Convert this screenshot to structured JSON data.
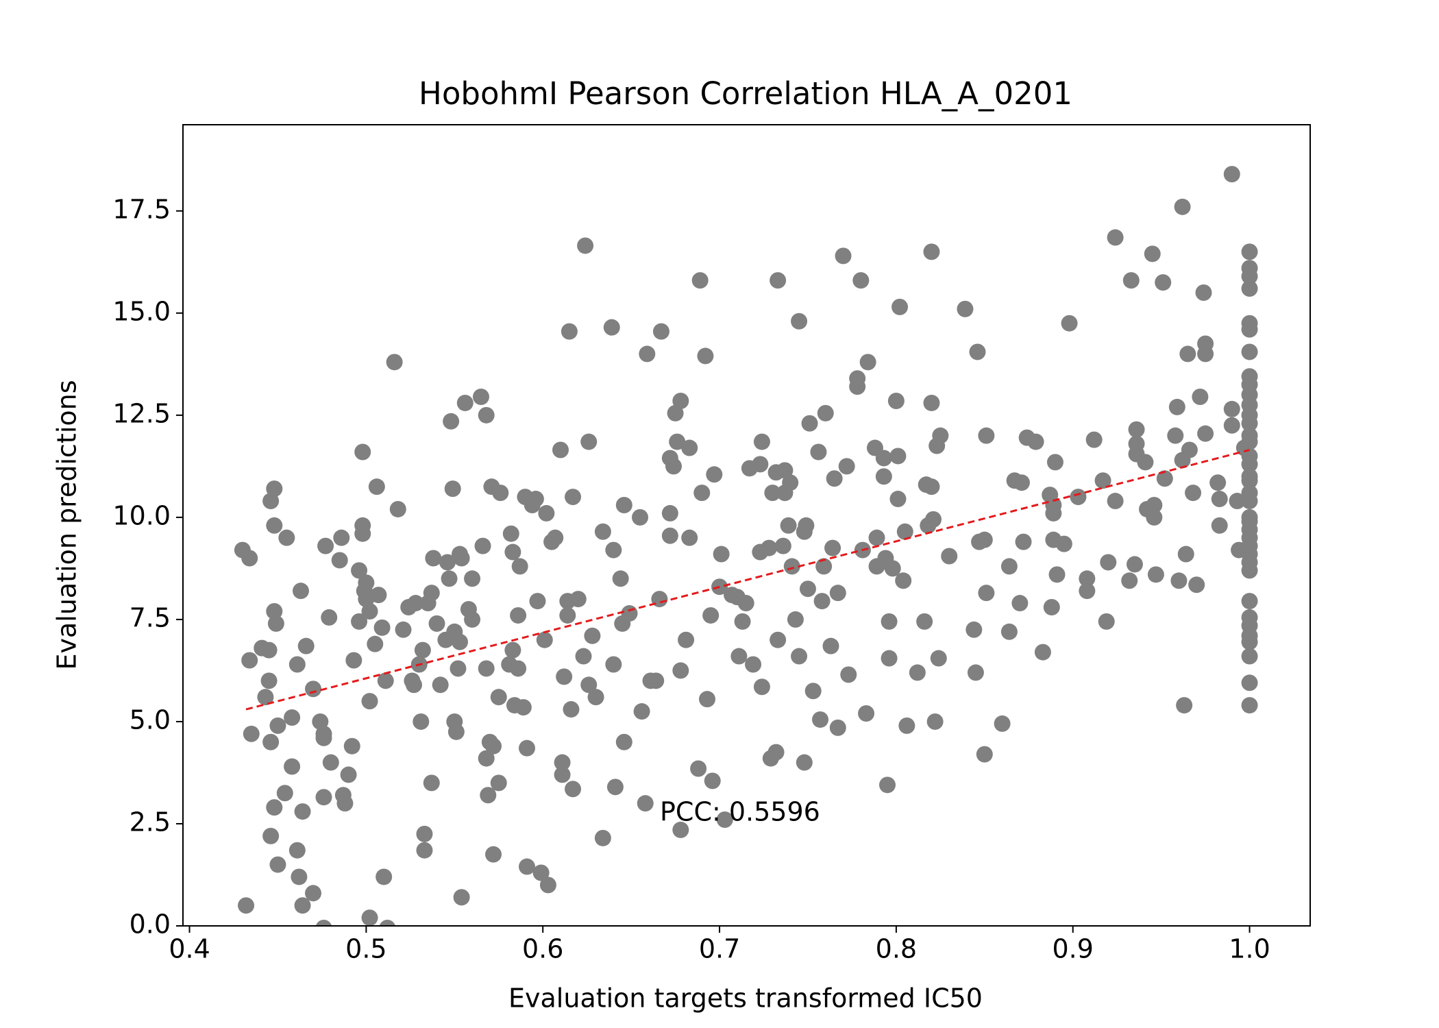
{
  "chart_data": {
    "type": "scatter",
    "title": "HobohmI Pearson Correlation HLA_A_0201",
    "xlabel": "Evaluation targets transformed IC50",
    "ylabel": "Evaluation predictions",
    "annotation": "PCC: 0.5596",
    "color": "#808080",
    "xlim": [
      0.3963,
      1.0343
    ],
    "ylim": [
      0,
      19.61
    ],
    "xticks": [
      0.4,
      0.5,
      0.6,
      0.7,
      0.8,
      0.9,
      {
        "value": 1,
        "label": "1.0"
      }
    ],
    "yticks": [
      {
        "value": 0,
        "label": "0.0"
      },
      2.5,
      {
        "value": 5,
        "label": "5.0"
      },
      7.5,
      {
        "value": 10,
        "label": "10.0"
      },
      12.5,
      {
        "value": 15,
        "label": "15.0"
      },
      17.5
    ],
    "trendline": {
      "color": "#e41a1c",
      "x": [
        0.432,
        1.0
      ],
      "values": [
        5.3,
        11.65
      ]
    },
    "x": [
      0.43,
      0.434,
      0.434,
      0.435,
      0.432,
      0.441,
      0.443,
      0.445,
      0.445,
      0.446,
      0.448,
      0.448,
      0.448,
      0.449,
      0.45,
      0.446,
      0.448,
      0.446,
      0.45,
      0.454,
      0.455,
      0.458,
      0.458,
      0.461,
      0.461,
      0.462,
      0.463,
      0.464,
      0.464,
      0.466,
      0.47,
      0.47,
      0.474,
      0.476,
      0.476,
      0.476,
      0.477,
      0.479,
      0.48,
      0.485,
      0.486,
      0.487,
      0.488,
      0.49,
      0.492,
      0.493,
      0.496,
      0.496,
      0.498,
      0.498,
      0.498,
      0.499,
      0.5,
      0.5,
      0.502,
      0.502,
      0.502,
      0.505,
      0.506,
      0.507,
      0.509,
      0.51,
      0.511,
      0.516,
      0.518,
      0.521,
      0.524,
      0.526,
      0.527,
      0.528,
      0.53,
      0.531,
      0.532,
      0.533,
      0.533,
      0.535,
      0.537,
      0.537,
      0.538,
      0.54,
      0.542,
      0.545,
      0.546,
      0.547,
      0.548,
      0.549,
      0.55,
      0.55,
      0.551,
      0.552,
      0.553,
      0.553,
      0.554,
      0.554,
      0.556,
      0.558,
      0.56,
      0.56,
      0.565,
      0.566,
      0.568,
      0.568,
      0.568,
      0.569,
      0.57,
      0.571,
      0.572,
      0.572,
      0.575,
      0.575,
      0.576,
      0.581,
      0.582,
      0.583,
      0.583,
      0.584,
      0.586,
      0.586,
      0.587,
      0.589,
      0.59,
      0.591,
      0.591,
      0.594,
      0.596,
      0.597,
      0.599,
      0.601,
      0.602,
      0.603,
      0.605,
      0.607,
      0.61,
      0.611,
      0.611,
      0.612,
      0.614,
      0.614,
      0.615,
      0.616,
      0.617,
      0.617,
      0.62,
      0.623,
      0.624,
      0.626,
      0.626,
      0.628,
      0.63,
      0.634,
      0.634,
      0.639,
      0.64,
      0.64,
      0.641,
      0.644,
      0.645,
      0.646,
      0.646,
      0.649,
      0.655,
      0.656,
      0.658,
      0.659,
      0.661,
      0.664,
      0.666,
      0.667,
      0.672,
      0.672,
      0.672,
      0.674,
      0.675,
      0.676,
      0.678,
      0.678,
      0.678,
      0.681,
      0.683,
      0.683,
      0.688,
      0.689,
      0.69,
      0.692,
      0.693,
      0.695,
      0.696,
      0.697,
      0.7,
      0.701,
      0.703,
      0.707,
      0.71,
      0.711,
      0.713,
      0.715,
      0.717,
      0.719,
      0.723,
      0.723,
      0.724,
      0.724,
      0.728,
      0.729,
      0.73,
      0.732,
      0.732,
      0.733,
      0.733,
      0.736,
      0.737,
      0.737,
      0.739,
      0.74,
      0.741,
      0.743,
      0.745,
      0.745,
      0.748,
      0.748,
      0.749,
      0.75,
      0.751,
      0.753,
      0.756,
      0.757,
      0.758,
      0.759,
      0.76,
      0.763,
      0.764,
      0.765,
      0.767,
      0.767,
      0.77,
      0.772,
      0.773,
      0.778,
      0.778,
      0.78,
      0.781,
      0.783,
      0.784,
      0.788,
      0.789,
      0.789,
      0.793,
      0.793,
      0.794,
      0.795,
      0.796,
      0.796,
      0.798,
      0.8,
      0.801,
      0.801,
      0.802,
      0.804,
      0.805,
      0.806,
      0.812,
      0.816,
      0.817,
      0.818,
      0.82,
      0.82,
      0.82,
      0.821,
      0.822,
      0.823,
      0.824,
      0.825,
      0.83,
      0.839,
      0.844,
      0.845,
      0.846,
      0.847,
      0.85,
      0.85,
      0.851,
      0.851,
      0.86,
      0.864,
      0.864,
      0.867,
      0.87,
      0.871,
      0.872,
      0.874,
      0.879,
      0.883,
      0.887,
      0.888,
      0.889,
      0.889,
      0.889,
      0.89,
      0.891,
      0.895,
      0.898,
      0.903,
      0.908,
      0.908,
      0.912,
      0.917,
      0.919,
      0.92,
      0.924,
      0.924,
      0.932,
      0.933,
      0.935,
      0.936,
      0.936,
      0.936,
      0.941,
      0.942,
      0.945,
      0.946,
      0.946,
      0.947,
      0.951,
      0.952,
      0.958,
      0.959,
      0.96,
      0.962,
      0.962,
      0.963,
      0.964,
      0.965,
      0.966,
      0.968,
      0.97,
      0.972,
      0.974,
      0.975,
      0.975,
      0.975,
      0.982,
      0.983,
      0.983,
      0.99,
      0.99,
      0.99,
      0.993,
      0.994,
      0.997,
      1,
      1,
      1,
      1,
      1,
      1,
      1,
      1,
      1,
      1,
      1,
      1,
      1,
      1,
      1,
      1,
      1,
      1,
      1,
      1,
      1,
      1,
      1,
      1,
      1,
      1,
      1,
      1,
      1,
      1,
      1,
      1,
      1,
      1,
      1,
      1,
      1,
      0.476,
      0.512
    ],
    "values": [
      9.2,
      9.0,
      6.5,
      4.7,
      0.5,
      6.8,
      5.6,
      6.0,
      6.75,
      10.4,
      10.7,
      9.8,
      7.7,
      7.4,
      4.9,
      4.5,
      2.9,
      2.2,
      1.5,
      3.25,
      9.5,
      5.1,
      3.9,
      6.4,
      1.85,
      1.2,
      8.2,
      2.8,
      0.5,
      6.85,
      5.8,
      0.8,
      5.0,
      4.7,
      4.6,
      3.15,
      9.3,
      7.55,
      4.0,
      8.95,
      9.5,
      3.2,
      3.0,
      3.7,
      4.4,
      6.5,
      7.45,
      8.7,
      11.6,
      9.8,
      9.6,
      8.2,
      8.4,
      8.0,
      7.7,
      5.5,
      0.2,
      6.9,
      10.75,
      8.1,
      7.3,
      1.2,
      6.0,
      13.8,
      10.2,
      7.25,
      7.8,
      6.0,
      5.9,
      7.9,
      6.4,
      5.0,
      6.75,
      2.25,
      1.85,
      7.9,
      8.15,
      3.5,
      9.0,
      7.4,
      5.9,
      7.0,
      8.9,
      8.5,
      12.35,
      10.7,
      7.2,
      5.0,
      4.75,
      6.3,
      6.95,
      9.1,
      9.0,
      0.7,
      12.8,
      7.75,
      8.5,
      7.5,
      12.95,
      9.3,
      6.3,
      12.5,
      4.1,
      3.2,
      4.5,
      10.75,
      4.4,
      1.75,
      5.6,
      3.5,
      10.6,
      6.4,
      9.6,
      6.75,
      9.15,
      5.4,
      7.6,
      6.3,
      8.8,
      5.35,
      10.5,
      4.35,
      1.45,
      10.3,
      10.45,
      7.95,
      1.3,
      7.0,
      10.1,
      1.0,
      9.4,
      9.5,
      11.65,
      4.0,
      3.7,
      6.1,
      7.95,
      7.6,
      14.55,
      5.3,
      10.5,
      3.35,
      8.0,
      6.6,
      16.65,
      11.85,
      5.9,
      7.1,
      5.6,
      9.65,
      2.15,
      14.65,
      6.4,
      9.2,
      3.4,
      8.5,
      7.4,
      10.3,
      4.5,
      7.65,
      10.0,
      5.25,
      3.0,
      14.0,
      6.0,
      6.0,
      8.0,
      14.55,
      11.45,
      10.1,
      9.55,
      11.25,
      12.55,
      11.85,
      12.85,
      6.25,
      2.35,
      7.0,
      11.7,
      9.5,
      3.85,
      15.8,
      10.6,
      13.95,
      5.55,
      7.6,
      3.55,
      11.05,
      8.3,
      9.1,
      2.6,
      8.1,
      8.05,
      6.6,
      7.45,
      7.9,
      11.2,
      6.4,
      11.3,
      9.15,
      11.85,
      5.85,
      9.25,
      4.1,
      10.6,
      4.25,
      11.1,
      15.8,
      7.0,
      9.3,
      11.15,
      10.6,
      9.8,
      10.85,
      8.8,
      7.5,
      6.6,
      14.8,
      9.65,
      4.0,
      9.8,
      8.25,
      12.3,
      5.75,
      11.6,
      5.05,
      7.95,
      8.8,
      12.55,
      6.85,
      9.25,
      10.95,
      8.15,
      4.85,
      16.4,
      11.25,
      6.15,
      13.4,
      13.2,
      15.8,
      9.2,
      5.2,
      13.8,
      11.7,
      9.5,
      8.8,
      11.45,
      11.0,
      9.0,
      3.45,
      6.55,
      7.45,
      8.75,
      12.85,
      11.5,
      10.45,
      15.15,
      8.45,
      9.65,
      4.9,
      6.2,
      7.45,
      10.8,
      9.8,
      10.75,
      16.5,
      12.8,
      9.95,
      5.0,
      11.75,
      6.55,
      12.0,
      9.05,
      15.1,
      7.25,
      6.2,
      14.05,
      9.4,
      9.45,
      4.2,
      8.15,
      12.0,
      4.95,
      8.8,
      7.2,
      10.9,
      7.9,
      10.85,
      9.4,
      11.95,
      11.85,
      6.7,
      10.55,
      7.8,
      9.45,
      10.3,
      10.1,
      11.35,
      8.6,
      9.35,
      14.75,
      10.5,
      8.5,
      8.2,
      11.9,
      10.9,
      7.45,
      8.9,
      10.4,
      16.85,
      8.45,
      15.8,
      8.85,
      11.55,
      12.15,
      11.8,
      11.35,
      10.2,
      16.45,
      10.3,
      10.0,
      8.6,
      15.75,
      10.95,
      12.0,
      12.7,
      8.45,
      11.4,
      17.6,
      5.4,
      9.1,
      14.0,
      11.65,
      10.6,
      8.35,
      12.95,
      15.5,
      14.25,
      14.0,
      12.05,
      10.85,
      10.45,
      9.8,
      12.25,
      12.65,
      18.4,
      10.4,
      9.2,
      11.7,
      16.5,
      16.1,
      15.9,
      15.6,
      14.75,
      14.6,
      14.05,
      13.45,
      13.25,
      13.0,
      12.75,
      12.5,
      12.3,
      12.0,
      11.85,
      11.5,
      11.3,
      11.0,
      10.9,
      10.6,
      10.4,
      10.0,
      9.9,
      9.7,
      9.5,
      9.3,
      9.1,
      8.9,
      8.7,
      7.95,
      7.55,
      7.35,
      7.1,
      6.95,
      6.6,
      5.95,
      5.4,
      -0.05,
      -0.05
    ]
  }
}
